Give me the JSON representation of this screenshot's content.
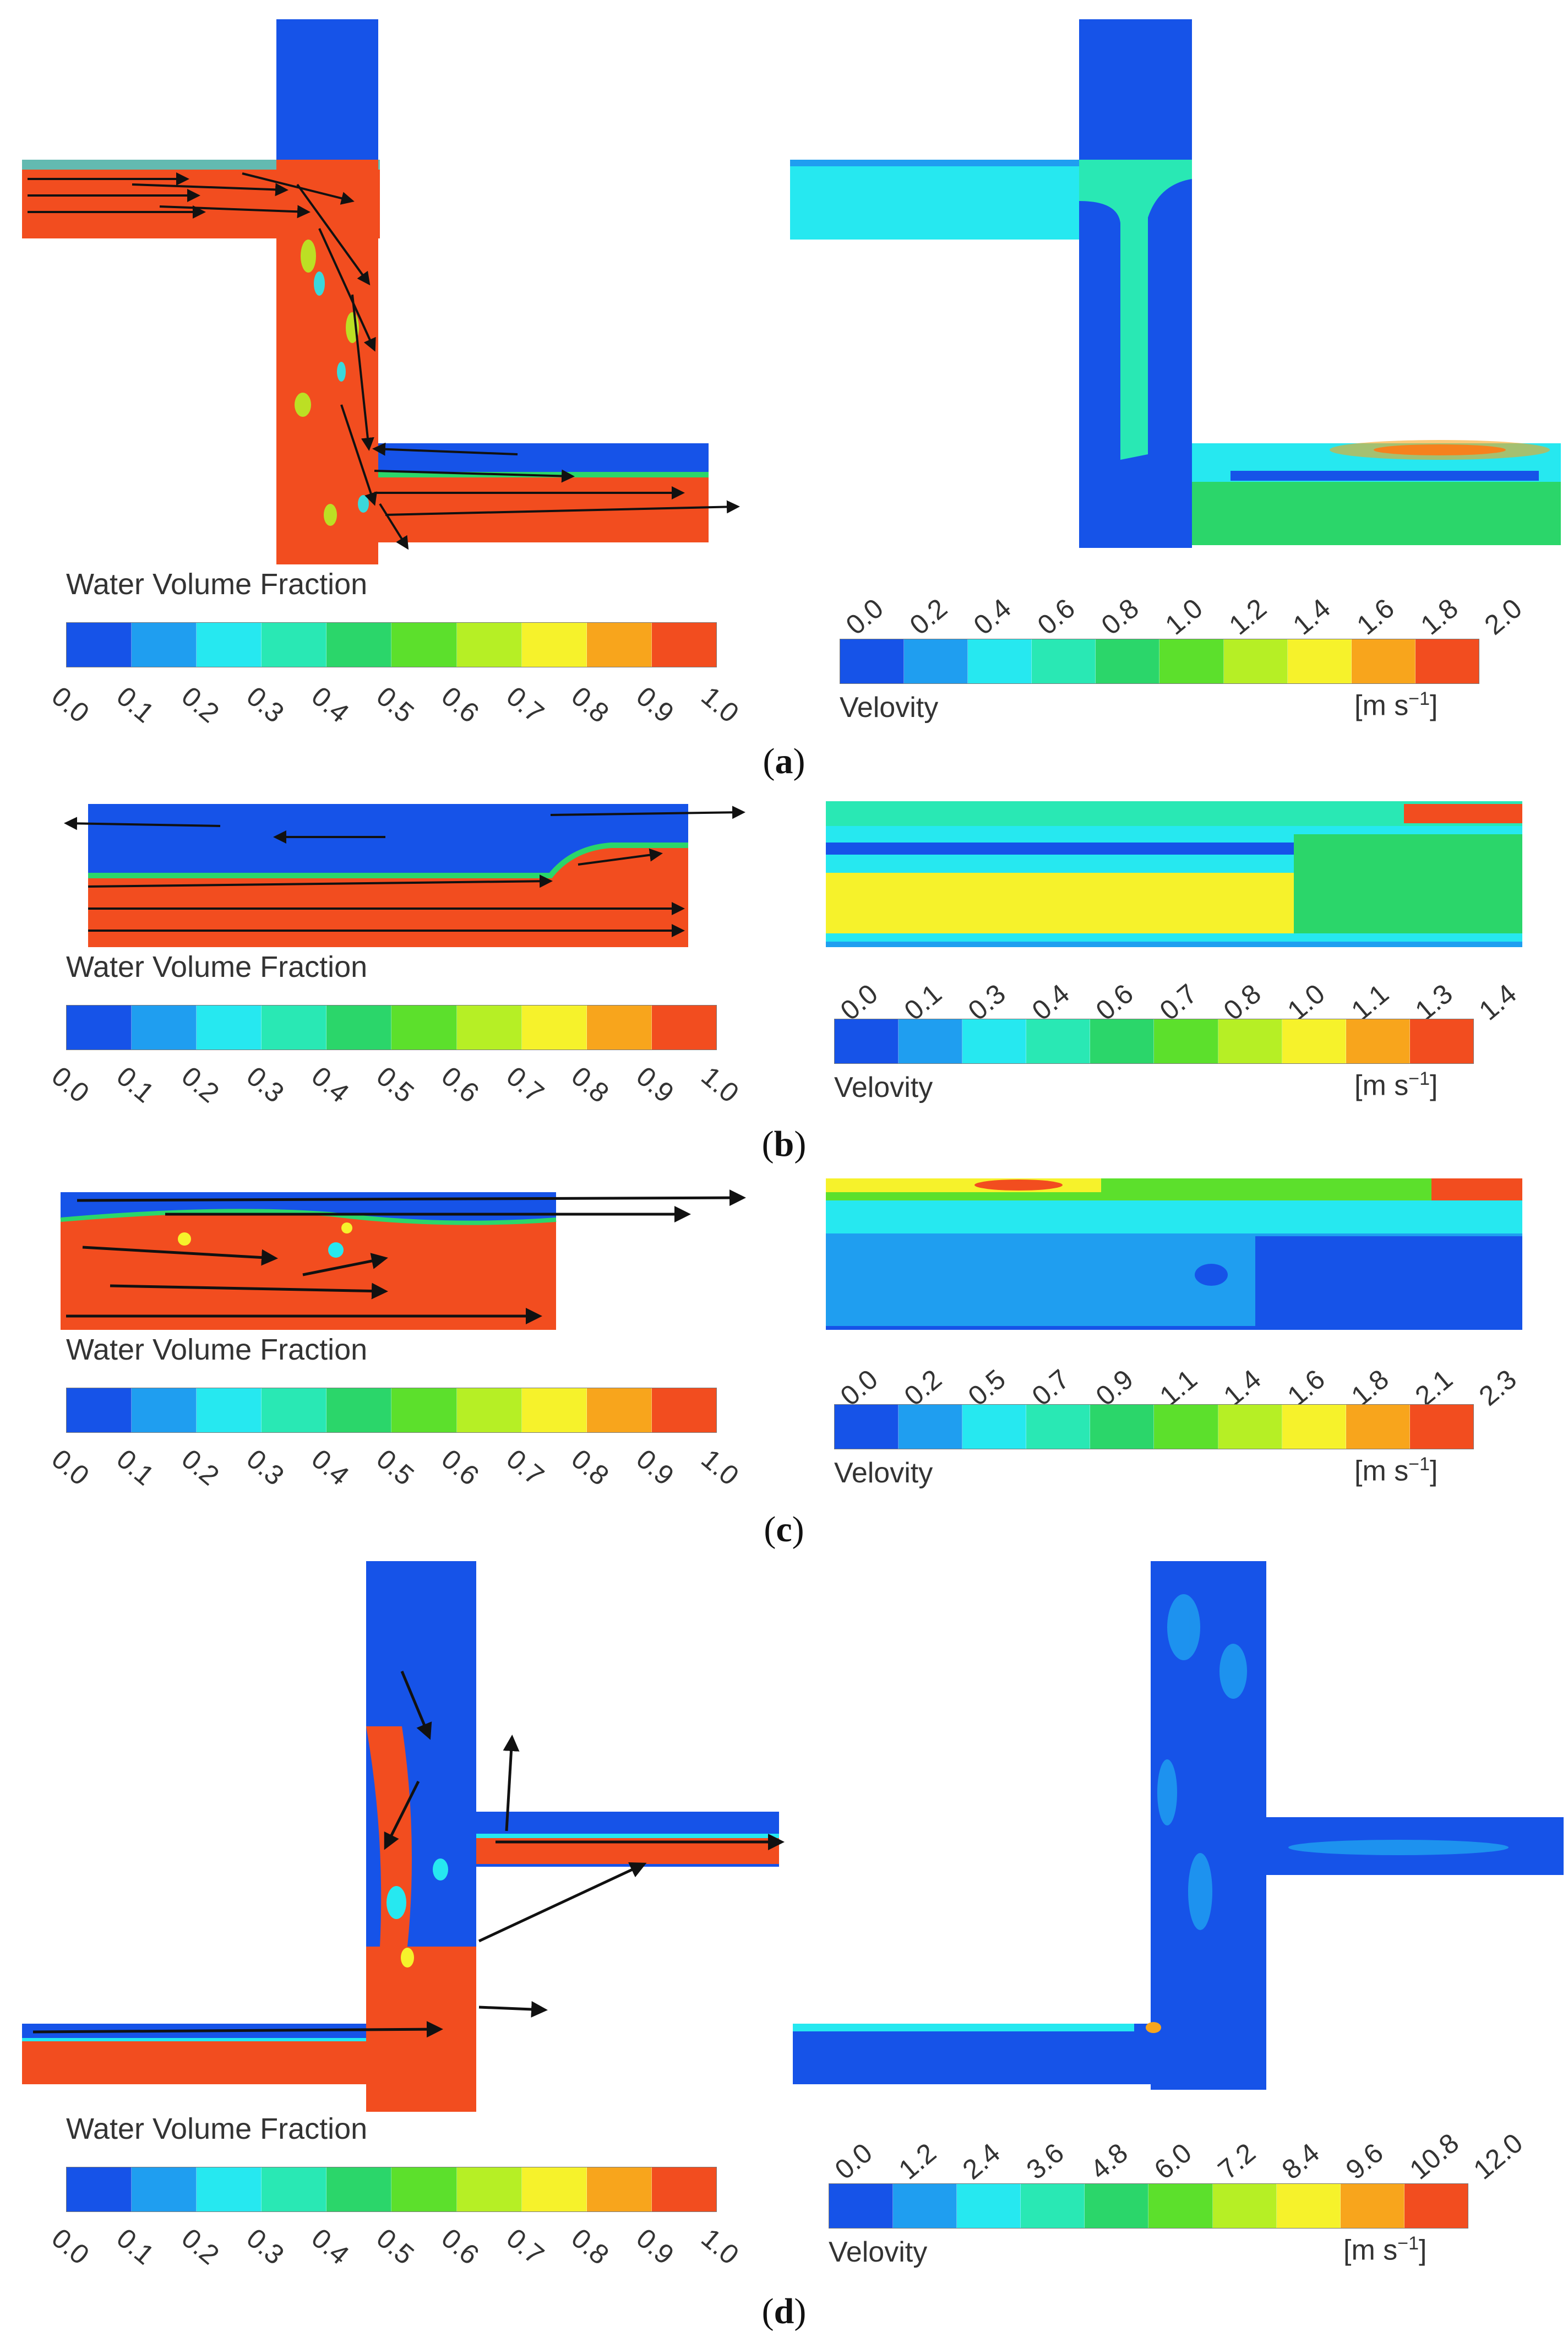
{
  "colors": {
    "scale": [
      "#1653e8",
      "#1f9ef0",
      "#26e8f0",
      "#29e8b4",
      "#2bd66a",
      "#5ce02c",
      "#b6ef25",
      "#f6f22b",
      "#f8a51c",
      "#f24d1f"
    ],
    "water": "#f24d1f",
    "air": "#1653e8",
    "arrow": "#111111"
  },
  "legend_common": {
    "vof_title": "Water Volume Fraction",
    "vof_ticks": [
      "0.0",
      "0.1",
      "0.2",
      "0.3",
      "0.4",
      "0.5",
      "0.6",
      "0.7",
      "0.8",
      "0.9",
      "1.0"
    ],
    "velocity_label": "Velovity",
    "velocity_unit": "[m s",
    "velocity_unit_exp": "−1",
    "velocity_unit_close": "]"
  },
  "panels": [
    {
      "id": "a",
      "caption_open": "(",
      "caption_letter": "a",
      "caption_close": ")",
      "velocity_ticks": [
        "0.0",
        "0.2",
        "0.4",
        "0.6",
        "0.8",
        "1.0",
        "1.2",
        "1.4",
        "1.6",
        "1.8",
        "2.0"
      ]
    },
    {
      "id": "b",
      "caption_open": "(",
      "caption_letter": "b",
      "caption_close": ")",
      "velocity_ticks": [
        "0.0",
        "0.1",
        "0.3",
        "0.4",
        "0.6",
        "0.7",
        "0.8",
        "1.0",
        "1.1",
        "1.3",
        "1.4"
      ]
    },
    {
      "id": "c",
      "caption_open": "(",
      "caption_letter": "c",
      "caption_close": ")",
      "velocity_ticks": [
        "0.0",
        "0.2",
        "0.5",
        "0.7",
        "0.9",
        "1.1",
        "1.4",
        "1.6",
        "1.8",
        "2.1",
        "2.3"
      ]
    },
    {
      "id": "d",
      "caption_open": "(",
      "caption_letter": "d",
      "caption_close": ")",
      "velocity_ticks": [
        "0.0",
        "1.2",
        "2.4",
        "3.6",
        "4.8",
        "6.0",
        "7.2",
        "8.4",
        "9.6",
        "10.8",
        "12.0"
      ]
    }
  ]
}
